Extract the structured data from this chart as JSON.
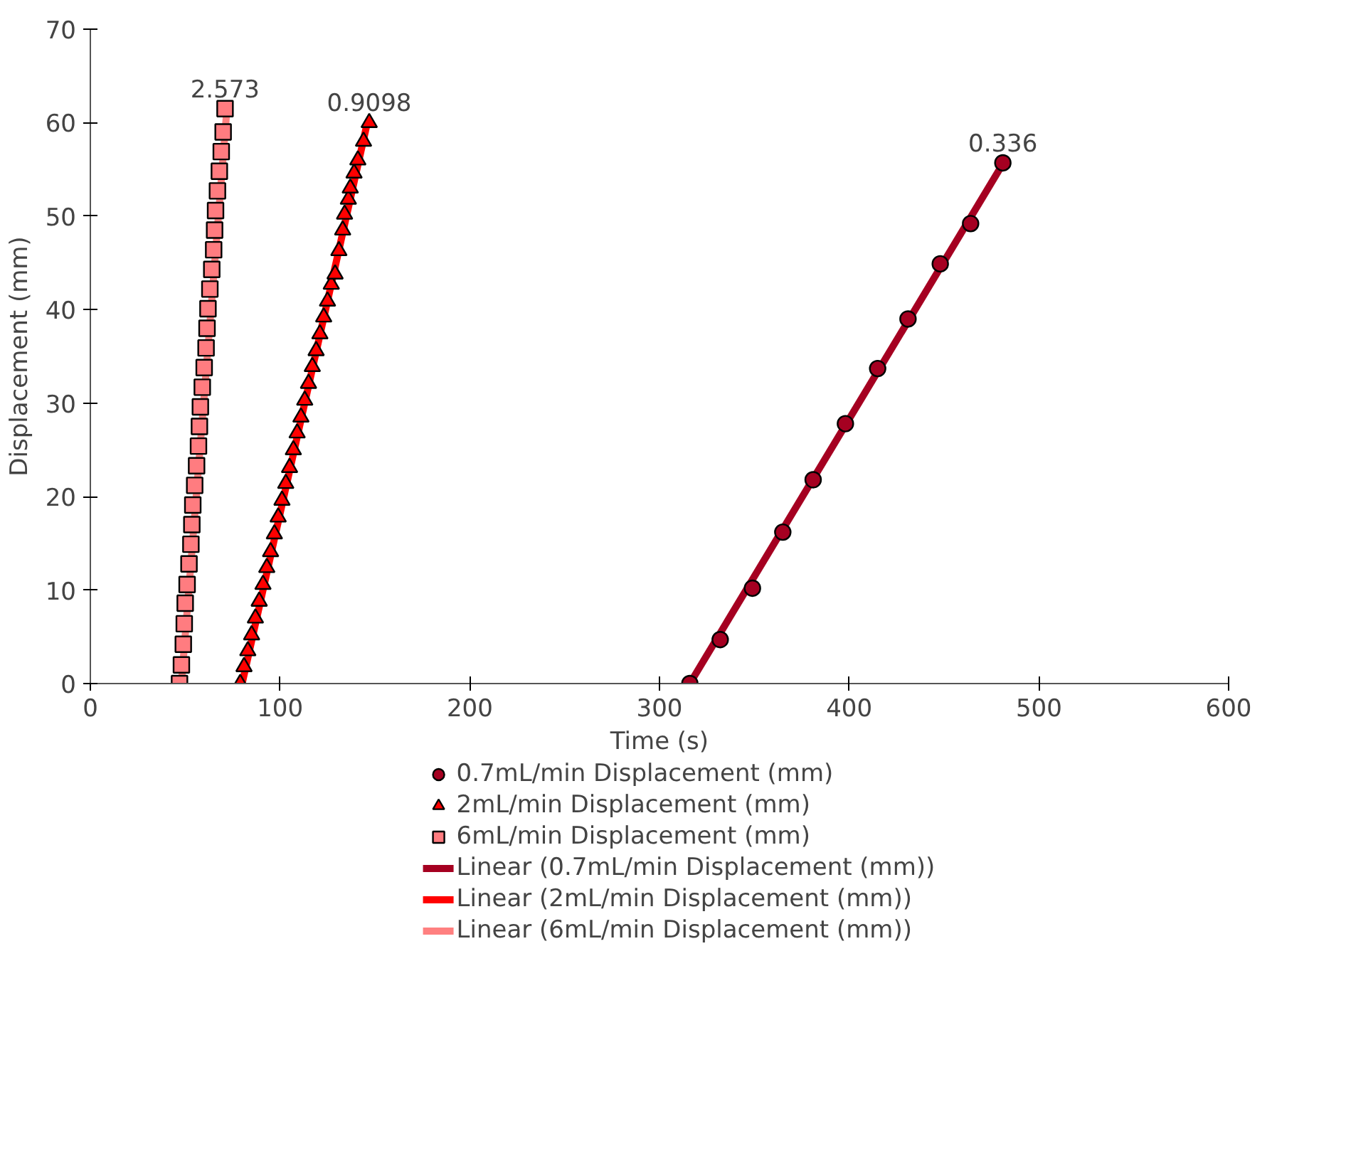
{
  "chart_data": {
    "type": "scatter",
    "xlabel": "Time (s)",
    "ylabel": "Displacement (mm)",
    "xlim": [
      0,
      600
    ],
    "xticks": [
      0,
      100,
      200,
      300,
      400,
      500,
      600
    ],
    "ylim": [
      0,
      70
    ],
    "yticks": [
      0,
      10,
      20,
      30,
      40,
      50,
      60,
      70
    ],
    "grid": false,
    "legend": "bottom",
    "series": [
      {
        "name": "0.7mL/min Displacement (mm)",
        "type": "scatter",
        "marker": "circle",
        "color": "#a50021",
        "x": [
          316,
          332,
          349,
          365,
          381,
          398,
          415,
          431,
          448,
          464,
          481
        ],
        "values": [
          0,
          4.7,
          10.2,
          16.2,
          21.8,
          27.8,
          33.7,
          39.0,
          44.9,
          49.2,
          55.7
        ]
      },
      {
        "name": "2mL/min Displacement (mm)",
        "type": "scatter",
        "marker": "triangle",
        "color": "#ff0000",
        "x": [
          79,
          81,
          83,
          85,
          87,
          89,
          91,
          93,
          95,
          97,
          99,
          101,
          103,
          105,
          107,
          109,
          111,
          113,
          115,
          117,
          119,
          121,
          123,
          125,
          127,
          129,
          131,
          133,
          134,
          136,
          137,
          139,
          141,
          144,
          147
        ],
        "values": [
          0,
          1.8,
          3.5,
          5.2,
          7,
          8.8,
          10.6,
          12.4,
          14.1,
          16,
          17.8,
          19.6,
          21.4,
          23.1,
          25,
          26.8,
          28.5,
          30.3,
          32.1,
          33.9,
          35.6,
          37.4,
          39.2,
          40.9,
          42.7,
          43.8,
          46.3,
          48.5,
          50.2,
          51.8,
          53,
          54.6,
          56,
          58,
          60
        ]
      },
      {
        "name": "6mL/min Displacement (mm)",
        "type": "scatter",
        "marker": "square",
        "color": "#ff7c80",
        "x": [
          47,
          48,
          49,
          49.5,
          50,
          51,
          52,
          53,
          53.5,
          54,
          55,
          56,
          57,
          57.5,
          58,
          59,
          60,
          61,
          61.5,
          62,
          63,
          64,
          65,
          65.5,
          66,
          67,
          68,
          69,
          70,
          71
        ],
        "values": [
          0,
          2,
          4.2,
          6.4,
          8.6,
          10.6,
          12.8,
          14.9,
          17,
          19.1,
          21.2,
          23.3,
          25.4,
          27.5,
          29.6,
          31.7,
          33.8,
          35.9,
          38,
          40.1,
          42.2,
          44.3,
          46.4,
          48.5,
          50.6,
          52.7,
          54.8,
          56.9,
          59,
          61.5
        ]
      },
      {
        "name": "Linear (0.7mL/min Displacement (mm))",
        "type": "line",
        "color": "#a50021",
        "x": [
          316,
          481
        ],
        "values": [
          0,
          55.6
        ]
      },
      {
        "name": "Linear (2mL/min Displacement (mm))",
        "type": "line",
        "color": "#ff0000",
        "x": [
          80,
          146
        ],
        "values": [
          0,
          60
        ]
      },
      {
        "name": "Linear (6mL/min Displacement (mm))",
        "type": "line",
        "color": "#ff8080",
        "x": [
          48,
          72
        ],
        "values": [
          0,
          61.5
        ]
      }
    ],
    "annotations": [
      {
        "text": "0.336",
        "x": 481,
        "y": 55.7
      },
      {
        "text": "0.9098",
        "x": 147,
        "y": 60
      },
      {
        "text": "2.573",
        "x": 71,
        "y": 61.5
      }
    ]
  }
}
